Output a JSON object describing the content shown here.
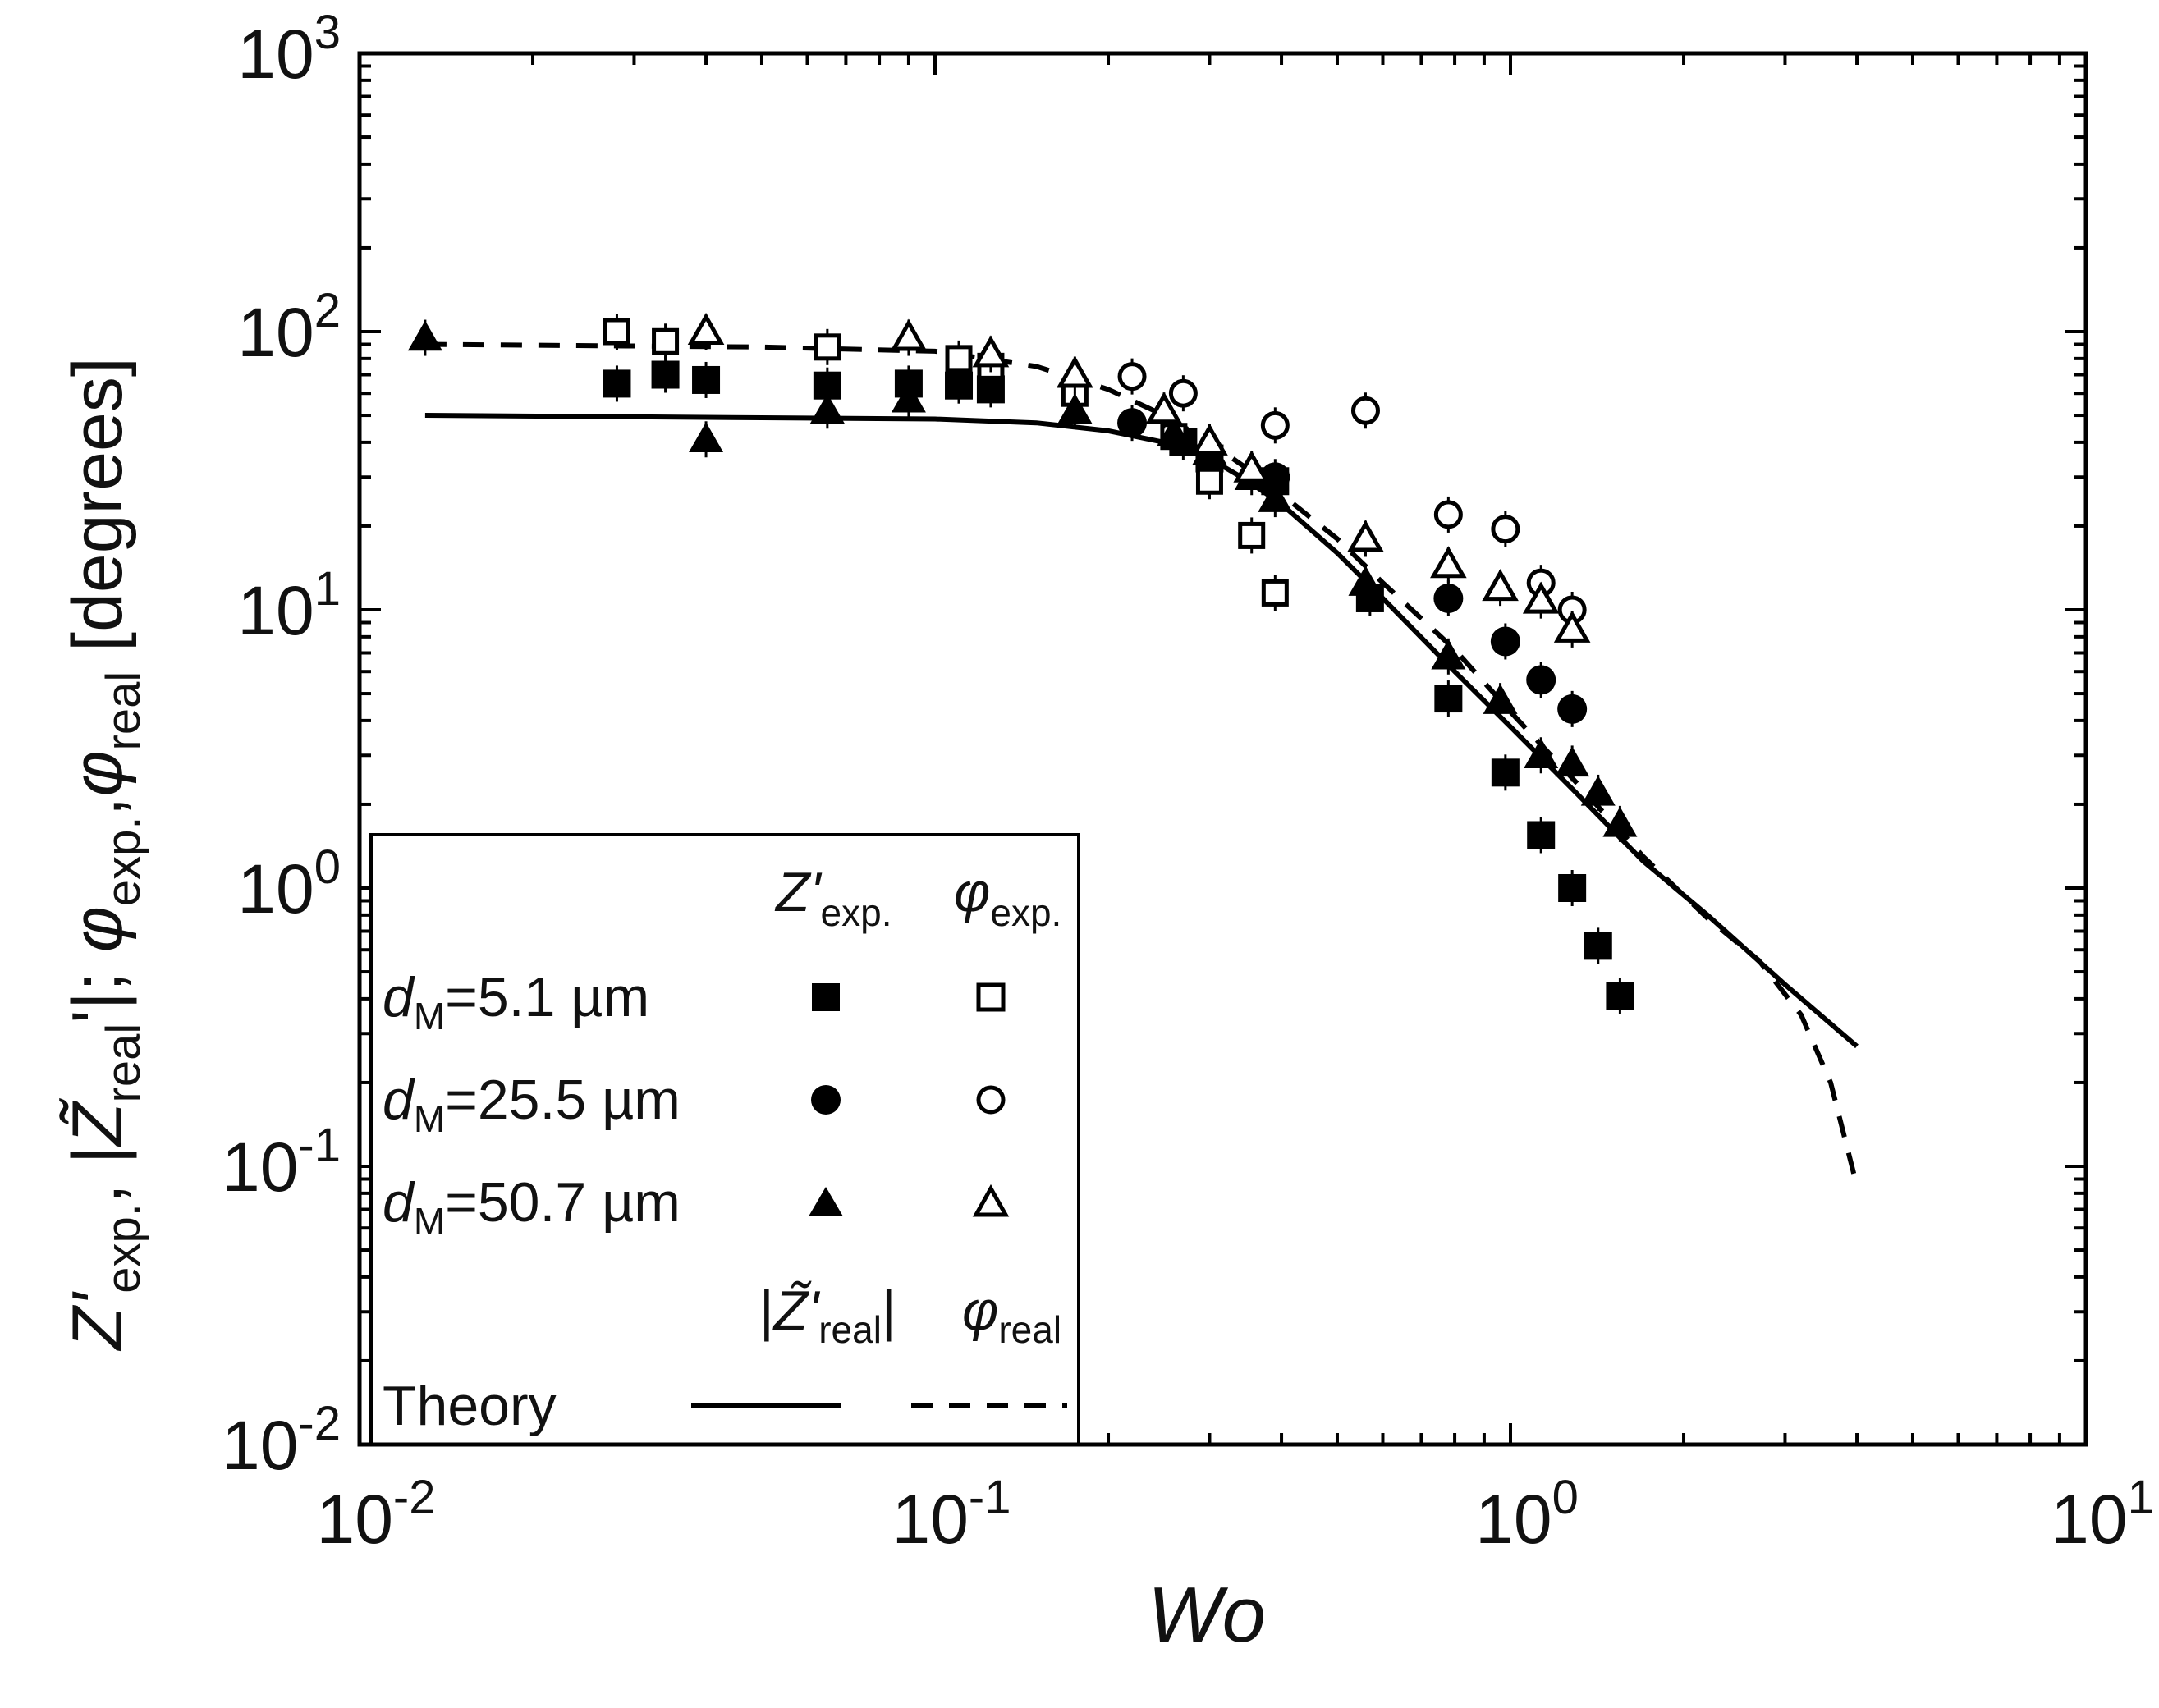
{
  "chart_data": {
    "type": "scatter",
    "xscale": "log",
    "yscale": "log",
    "xlim": [
      0.01,
      10
    ],
    "ylim": [
      0.01,
      1000
    ],
    "xlabel": "Wo",
    "ylabel": "Z'exp., |Z̃'real|; φexp., φreal [degrees]",
    "ylabel_parts": {
      "z": "Z'",
      "z_sub": "exp.",
      "comma1": ", |",
      "zt": "Z̃",
      "zt_sub": "real",
      "rest": "'|; ",
      "phi1": "φ",
      "phi1_sub": "exp.",
      "comma2": ",",
      "phi2": "φ",
      "phi2_sub": "real",
      "units": " [degrees]"
    },
    "xticks": [
      {
        "value": 0.01,
        "base": "10",
        "exp": "-2"
      },
      {
        "value": 0.1,
        "base": "10",
        "exp": "-1"
      },
      {
        "value": 1,
        "base": "10",
        "exp": "0"
      },
      {
        "value": 10,
        "base": "10",
        "exp": "1"
      }
    ],
    "yticks": [
      {
        "value": 0.01,
        "base": "10",
        "exp": "-2"
      },
      {
        "value": 0.1,
        "base": "10",
        "exp": "-1"
      },
      {
        "value": 1,
        "base": "10",
        "exp": "0"
      },
      {
        "value": 10,
        "base": "10",
        "exp": "1"
      },
      {
        "value": 100,
        "base": "10",
        "exp": "2"
      },
      {
        "value": 1000,
        "base": "10",
        "exp": "3"
      }
    ],
    "series": [
      {
        "name": "Z'exp. dM=5.1 µm",
        "marker": "square",
        "filled": true,
        "x": [
          0.028,
          0.034,
          0.04,
          0.065,
          0.09,
          0.11,
          0.125,
          0.27,
          0.3,
          0.39,
          0.57,
          0.78,
          0.98,
          1.13,
          1.28,
          1.42,
          1.55
        ],
        "y": [
          65,
          70,
          67,
          64,
          65,
          64,
          62,
          40,
          35,
          29,
          11,
          4.8,
          2.6,
          1.55,
          1.0,
          0.62,
          0.41
        ]
      },
      {
        "name": "φexp. dM=5.1 µm",
        "marker": "square",
        "filled": false,
        "x": [
          0.028,
          0.034,
          0.065,
          0.11,
          0.125,
          0.175,
          0.26,
          0.3,
          0.355,
          0.39
        ],
        "y": [
          100,
          92,
          88,
          80,
          75,
          60,
          42,
          29,
          18.5,
          11.5
        ]
      },
      {
        "name": "Z'exp. dM=25.5 µm",
        "marker": "circle",
        "filled": true,
        "x": [
          0.22,
          0.39,
          0.78,
          0.98,
          1.13,
          1.28
        ],
        "y": [
          47,
          30,
          11,
          7.7,
          5.6,
          4.4
        ]
      },
      {
        "name": "φexp. dM=25.5 µm",
        "marker": "circle",
        "filled": false,
        "x": [
          0.22,
          0.27,
          0.39,
          0.56,
          0.78,
          0.98,
          1.13,
          1.28
        ],
        "y": [
          69,
          60,
          46,
          52,
          22,
          19.5,
          12.5,
          10
        ]
      },
      {
        "name": "Z'exp. dM=50.7 µm",
        "marker": "triangle",
        "filled": true,
        "x": [
          0.013,
          0.04,
          0.065,
          0.09,
          0.175,
          0.26,
          0.3,
          0.355,
          0.39,
          0.56,
          0.78,
          0.96,
          1.13,
          1.28,
          1.42,
          1.55
        ],
        "y": [
          95,
          41,
          52,
          57,
          52,
          43,
          37,
          30,
          25,
          12.5,
          6.8,
          4.7,
          3.0,
          2.8,
          2.2,
          1.7
        ]
      },
      {
        "name": "φexp. dM=50.7 µm",
        "marker": "triangle",
        "filled": false,
        "x": [
          0.04,
          0.09,
          0.125,
          0.175,
          0.25,
          0.3,
          0.355,
          0.56,
          0.78,
          0.96,
          1.13,
          1.28
        ],
        "y": [
          100,
          95,
          83,
          70,
          52,
          40,
          32,
          18,
          14.5,
          12,
          10.8,
          8.5
        ]
      },
      {
        "name": "|Z̃'real| Theory",
        "line": "solid",
        "x": [
          0.013,
          0.05,
          0.1,
          0.15,
          0.2,
          0.25,
          0.3,
          0.35,
          0.4,
          0.5,
          0.6,
          0.8,
          1.0,
          1.3,
          1.7,
          2.2,
          3.0,
          4.0
        ],
        "y": [
          50,
          49,
          48.5,
          47,
          44,
          40,
          35,
          29,
          24,
          16,
          11,
          6.0,
          3.8,
          2.2,
          1.25,
          0.8,
          0.45,
          0.27
        ]
      },
      {
        "name": "φreal Theory",
        "line": "dashed",
        "x": [
          0.013,
          0.05,
          0.1,
          0.15,
          0.2,
          0.25,
          0.3,
          0.35,
          0.4,
          0.5,
          0.6,
          0.8,
          1.0,
          1.3,
          1.7,
          2.2,
          2.7,
          3.2,
          3.6,
          4.0
        ],
        "y": [
          90,
          88,
          85,
          75,
          62,
          50,
          40,
          32,
          26,
          18,
          12.5,
          7.2,
          4.3,
          2.4,
          1.3,
          0.78,
          0.55,
          0.35,
          0.2,
          0.085
        ]
      }
    ],
    "legend": {
      "position": "bottom-left",
      "col_headers": {
        "zexp": "Z'",
        "zexp_sub": "exp.",
        "phiexp": "φ",
        "phiexp_sub": "exp."
      },
      "rows": [
        {
          "pre": "d",
          "sub": "M",
          "post": "=5.1 µm",
          "marker": "square"
        },
        {
          "pre": "d",
          "sub": "M",
          "post": "=25.5 µm",
          "marker": "circle"
        },
        {
          "pre": "d",
          "sub": "M",
          "post": "=50.7 µm",
          "marker": "triangle"
        }
      ],
      "theory_headers": {
        "z_open": "|",
        "z": "Z̃'",
        "z_sub": "real",
        "z_close": "|",
        "phi": "φ",
        "phi_sub": "real"
      },
      "theory_label": "Theory"
    }
  }
}
